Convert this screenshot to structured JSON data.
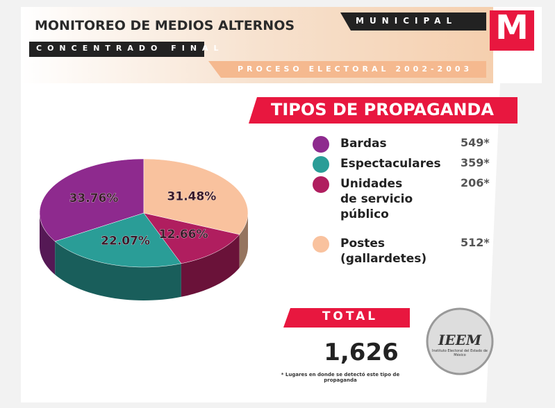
{
  "header": {
    "title": "MONITOREO DE MEDIOS ALTERNOS",
    "level": "MUNICIPAL",
    "badge": "M",
    "subtitle": "CONCENTRADO FINAL",
    "process": "PROCESO ELECTORAL 2002-2003"
  },
  "chart_data": {
    "type": "pie",
    "title": "TIPOS DE PROPAGANDA",
    "categories": [
      "Bardas",
      "Espectaculares",
      "Unidades\nde servicio\npúblico",
      "Postes\n(gallardetes)"
    ],
    "values": [
      33.76,
      22.07,
      12.66,
      31.48
    ],
    "value_labels": [
      "33.76%",
      "22.07%",
      "12.66%",
      "31.48%"
    ],
    "colors": [
      "#8e2a8e",
      "#2a9d97",
      "#b01e5f",
      "#f9c29e"
    ],
    "counts": [
      "549*",
      "359*",
      "206*",
      "512*"
    ]
  },
  "total": {
    "label": "TOTAL",
    "value": "1,626"
  },
  "logo": {
    "name": "IEEM",
    "caption": "Instituto Electoral del Estado de México"
  },
  "footnote": "* Lugares en donde se detectó este tipo de propaganda"
}
